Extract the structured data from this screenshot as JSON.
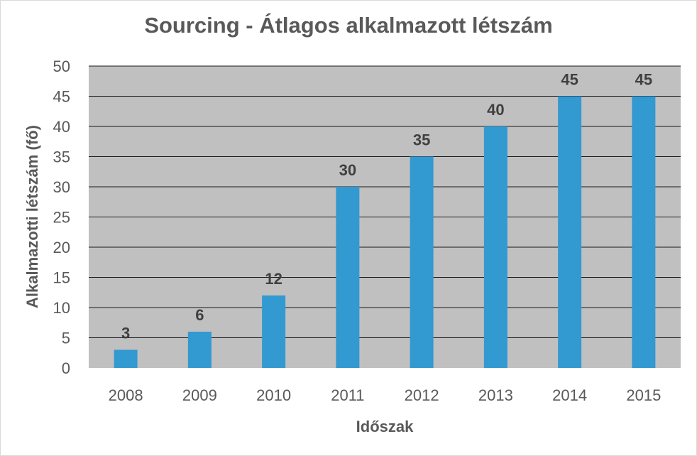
{
  "colors": {
    "bar": "#3399d1",
    "plot_background": "#c0c0c0",
    "gridline": "#1a1a1a",
    "text": "#595959",
    "data_label": "#404040"
  },
  "chart_data": {
    "type": "bar",
    "title": "Sourcing - Átlagos alkalmazott létszám",
    "xlabel": "Időszak",
    "ylabel": "Alkalmazotti létszám (fő)",
    "categories": [
      "2008",
      "2009",
      "2010",
      "2011",
      "2012",
      "2013",
      "2014",
      "2015"
    ],
    "values": [
      3,
      6,
      12,
      30,
      35,
      40,
      45,
      45
    ],
    "data_labels": [
      "3",
      "6",
      "12",
      "30",
      "35",
      "40",
      "45",
      "45"
    ],
    "ylim": [
      0,
      50
    ],
    "y_ticks": [
      0,
      5,
      10,
      15,
      20,
      25,
      30,
      35,
      40,
      45,
      50
    ],
    "grid": true,
    "legend": "none"
  }
}
